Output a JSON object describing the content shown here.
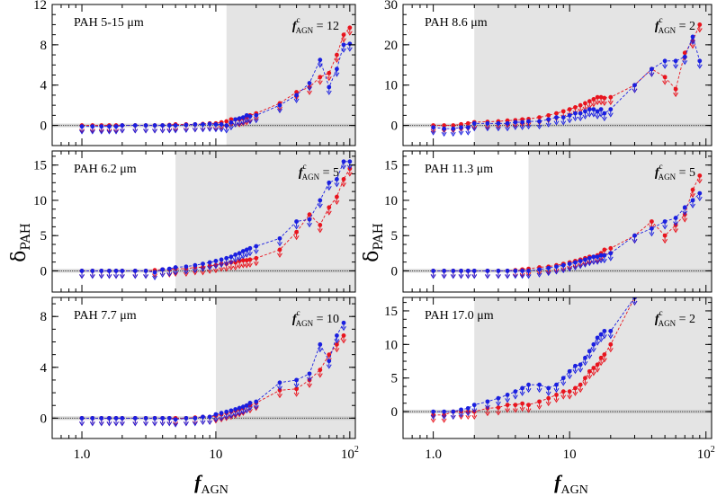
{
  "figure": {
    "xlabel_main": "f",
    "xlabel_sub": "AGN",
    "ylabel_main": "δ",
    "ylabel_sub": "PAH",
    "colors": {
      "red": "#e8141e",
      "blue": "#1a1fe0",
      "shade": "#e4e4e4"
    }
  },
  "chart_data": [
    {
      "type": "line",
      "panel": "PAH 5-15 μm",
      "threshold_text": "f",
      "threshold_sup": "c",
      "threshold_sub": "AGN",
      "threshold_value": "= 12",
      "threshold": 12,
      "xscale": "log",
      "xlim": [
        0.6,
        110
      ],
      "ylim": [
        -2,
        12
      ],
      "yticks": [
        0,
        4,
        8,
        12
      ],
      "series": [
        {
          "color": "red",
          "x": [
            1,
            1.2,
            1.4,
            1.6,
            1.8,
            2,
            2.5,
            3,
            3.5,
            4,
            4.5,
            5,
            6,
            7,
            8,
            9,
            10,
            11,
            12,
            13,
            14,
            15,
            16,
            17,
            18,
            20,
            30,
            40,
            50,
            60,
            70,
            80,
            90,
            100
          ],
          "y": [
            0,
            0,
            0,
            0,
            0,
            0,
            0,
            0,
            0,
            0,
            0.05,
            0.1,
            0.1,
            0.1,
            0.15,
            0.2,
            0.2,
            0.3,
            0.4,
            0.6,
            0.6,
            0.6,
            0.7,
            0.8,
            1,
            1.2,
            2.2,
            3.3,
            3.8,
            4.8,
            5.2,
            7,
            9,
            9.7
          ]
        },
        {
          "color": "blue",
          "x": [
            1,
            1.2,
            1.4,
            1.6,
            1.8,
            2,
            2.5,
            3,
            3.5,
            4,
            4.5,
            5,
            6,
            7,
            8,
            9,
            10,
            11,
            12,
            13,
            14,
            15,
            16,
            17,
            18,
            20,
            30,
            40,
            50,
            60,
            70,
            80,
            90,
            100
          ],
          "y": [
            -0.1,
            -0.1,
            -0.1,
            -0.1,
            -0.1,
            0,
            0,
            0,
            0,
            0,
            0,
            0,
            0.05,
            0.1,
            0.1,
            0.15,
            0.1,
            0.1,
            0,
            0.3,
            0.6,
            0.7,
            0.8,
            1,
            0.9,
            1,
            2.0,
            3.0,
            4.2,
            6.5,
            3.8,
            5.6,
            8.0,
            8.1
          ]
        }
      ],
      "x_tick_labels": [
        "1.0",
        "10",
        "10"
      ],
      "x_tick_sup": "2"
    },
    {
      "type": "line",
      "panel": "PAH 8.6 μm",
      "threshold_text": "f",
      "threshold_sup": "c",
      "threshold_sub": "AGN",
      "threshold_value": "= 2",
      "threshold": 2,
      "xscale": "log",
      "xlim": [
        0.6,
        110
      ],
      "ylim": [
        -5,
        30
      ],
      "yticks": [
        0,
        10,
        20,
        30
      ],
      "series": [
        {
          "color": "red",
          "x": [
            1,
            1.2,
            1.4,
            1.6,
            1.8,
            2,
            2.5,
            3,
            3.5,
            4,
            4.5,
            5,
            6,
            7,
            8,
            9,
            10,
            11,
            12,
            13,
            14,
            15,
            16,
            17,
            18,
            20,
            30,
            40,
            50,
            60,
            70,
            80,
            90
          ],
          "y": [
            0,
            0,
            0,
            0.3,
            0.5,
            0.8,
            0.9,
            1,
            1.2,
            1.3,
            1.5,
            1.6,
            2,
            2.5,
            3,
            3.5,
            4,
            4.5,
            5,
            5.5,
            6,
            6.5,
            7,
            7,
            6.8,
            7,
            10,
            14,
            12,
            9,
            18,
            21,
            25
          ]
        },
        {
          "color": "blue",
          "x": [
            1,
            1.2,
            1.4,
            1.6,
            1.8,
            2,
            2.5,
            3,
            3.5,
            4,
            4.5,
            5,
            6,
            7,
            8,
            9,
            10,
            11,
            12,
            13,
            14,
            15,
            16,
            17,
            18,
            20,
            30,
            40,
            50,
            60,
            70,
            80,
            90
          ],
          "y": [
            -0.5,
            -0.8,
            -0.8,
            -0.5,
            -0.5,
            0.5,
            0.5,
            0.5,
            0.5,
            0.8,
            0.8,
            1,
            1,
            1.5,
            2,
            2,
            2.5,
            3,
            3,
            3.5,
            4,
            4,
            3.5,
            4,
            3,
            4,
            10,
            14,
            16,
            16,
            17,
            22,
            16
          ]
        }
      ],
      "x_tick_labels": [
        "1.0",
        "10",
        "10"
      ],
      "x_tick_sup": "2"
    },
    {
      "type": "line",
      "panel": "PAH 6.2 μm",
      "threshold_text": "f",
      "threshold_sup": "c",
      "threshold_sub": "AGN",
      "threshold_value": "= 5",
      "threshold": 5,
      "xscale": "log",
      "xlim": [
        0.6,
        110
      ],
      "ylim": [
        -3,
        17
      ],
      "yticks": [
        0,
        5,
        10,
        15
      ],
      "series": [
        {
          "color": "red",
          "x": [
            1,
            1.2,
            1.4,
            1.6,
            1.8,
            2,
            2.5,
            3,
            3.5,
            4,
            4.5,
            5,
            6,
            7,
            8,
            9,
            10,
            11,
            12,
            13,
            14,
            15,
            16,
            17,
            18,
            20,
            30,
            40,
            50,
            60,
            70,
            80,
            90,
            100
          ],
          "y": [
            0,
            0,
            0,
            0,
            0,
            0,
            0,
            0,
            0.1,
            0.2,
            0.2,
            0.3,
            0.3,
            0.5,
            0.5,
            0.7,
            0.8,
            1,
            1,
            1.2,
            1.2,
            1.4,
            1.5,
            1.5,
            1.6,
            1.8,
            3,
            5.5,
            8,
            6.5,
            9,
            10.5,
            13,
            14.5
          ]
        },
        {
          "color": "blue",
          "x": [
            1,
            1.2,
            1.4,
            1.6,
            1.8,
            2,
            2.5,
            3,
            3.5,
            4,
            4.5,
            5,
            6,
            7,
            8,
            9,
            10,
            11,
            12,
            13,
            14,
            15,
            16,
            17,
            18,
            20,
            30,
            40,
            50,
            60,
            70,
            80,
            90,
            100
          ],
          "y": [
            0,
            0,
            0,
            0,
            0,
            0,
            0,
            0,
            -0.2,
            0.2,
            0.3,
            0.5,
            0.6,
            0.8,
            1,
            1.2,
            1.4,
            1.6,
            1.8,
            2,
            2.3,
            2.5,
            2.8,
            3,
            3.2,
            3.5,
            4.6,
            7,
            7.3,
            10,
            12.5,
            13,
            15.5,
            15.5
          ]
        }
      ],
      "x_tick_labels": [
        "1.0",
        "10",
        "10"
      ],
      "x_tick_sup": "2"
    },
    {
      "type": "line",
      "panel": "PAH 11.3 μm",
      "threshold_text": "f",
      "threshold_sup": "c",
      "threshold_sub": "AGN",
      "threshold_value": "= 5",
      "threshold": 5,
      "xscale": "log",
      "xlim": [
        0.6,
        110
      ],
      "ylim": [
        -3,
        17
      ],
      "yticks": [
        0,
        5,
        10,
        15
      ],
      "series": [
        {
          "color": "red",
          "x": [
            1,
            1.2,
            1.4,
            1.6,
            1.8,
            2,
            2.5,
            3,
            3.5,
            4,
            4.5,
            5,
            6,
            7,
            8,
            9,
            10,
            11,
            12,
            13,
            14,
            15,
            16,
            17,
            18,
            20,
            30,
            40,
            50,
            60,
            70,
            80,
            90
          ],
          "y": [
            0,
            0,
            0,
            0,
            0,
            0,
            0,
            0,
            0,
            0.1,
            0.2,
            0.3,
            0.5,
            0.6,
            0.8,
            1,
            1.2,
            1.4,
            1.6,
            1.8,
            2,
            2,
            2.2,
            2.5,
            3,
            3.2,
            5,
            7,
            5,
            6.5,
            8,
            11.5,
            13.5
          ]
        },
        {
          "color": "blue",
          "x": [
            1,
            1.2,
            1.4,
            1.6,
            1.8,
            2,
            2.5,
            3,
            3.5,
            4,
            4.5,
            5,
            6,
            7,
            8,
            9,
            10,
            11,
            12,
            13,
            14,
            15,
            16,
            17,
            18,
            20,
            30,
            40,
            50,
            60,
            70,
            80,
            90
          ],
          "y": [
            0,
            0,
            0,
            0,
            0,
            0,
            0,
            0,
            0,
            0,
            0,
            0,
            0.2,
            0.4,
            0.6,
            0.8,
            1,
            1.2,
            1.4,
            1.6,
            1.8,
            2,
            2,
            2.2,
            2.2,
            2.5,
            5,
            6,
            7,
            7.5,
            9,
            10,
            11
          ]
        }
      ],
      "x_tick_labels": [
        "1.0",
        "10",
        "10"
      ],
      "x_tick_sup": "2"
    },
    {
      "type": "line",
      "panel": "PAH 7.7 μm",
      "threshold_text": "f",
      "threshold_sup": "c",
      "threshold_sub": "AGN",
      "threshold_value": "= 10",
      "threshold": 10,
      "xscale": "log",
      "xlim": [
        0.6,
        110
      ],
      "ylim": [
        -1.6,
        9.5
      ],
      "yticks": [
        0,
        4,
        8
      ],
      "series": [
        {
          "color": "red",
          "x": [
            1,
            1.2,
            1.4,
            1.6,
            1.8,
            2,
            2.5,
            3,
            3.5,
            4,
            4.5,
            5,
            6,
            7,
            8,
            9,
            10,
            11,
            12,
            13,
            14,
            15,
            16,
            17,
            18,
            20,
            30,
            40,
            50,
            60,
            70,
            80,
            90
          ],
          "y": [
            0,
            0,
            0,
            0,
            0,
            0,
            0,
            0,
            0,
            0,
            0,
            0,
            0,
            0.05,
            0.1,
            0.1,
            0.2,
            0.3,
            0.4,
            0.5,
            0.6,
            0.7,
            0.8,
            1,
            1,
            1.2,
            2.2,
            2.3,
            3,
            3.8,
            5,
            5.8,
            6.5
          ]
        },
        {
          "color": "blue",
          "x": [
            1,
            1.2,
            1.4,
            1.6,
            1.8,
            2,
            2.5,
            3,
            3.5,
            4,
            4.5,
            5,
            6,
            7,
            8,
            9,
            10,
            11,
            12,
            13,
            14,
            15,
            16,
            17,
            18,
            20,
            30,
            40,
            50,
            60,
            70,
            80,
            90
          ],
          "y": [
            0,
            0,
            0,
            0,
            0,
            0,
            0,
            0,
            0,
            0,
            0,
            -0.1,
            0,
            0,
            0.1,
            0.1,
            0.3,
            0.4,
            0.5,
            0.6,
            0.7,
            0.8,
            0.9,
            1,
            1.2,
            1.3,
            2.8,
            3,
            3.5,
            5.8,
            4.5,
            6.5,
            7.5
          ]
        }
      ],
      "x_tick_labels": [
        "1.0",
        "10",
        "10"
      ],
      "x_tick_sup": "2"
    },
    {
      "type": "line",
      "panel": "PAH 17.0 μm",
      "threshold_text": "f",
      "threshold_sup": "c",
      "threshold_sub": "AGN",
      "threshold_value": "= 2",
      "threshold": 2,
      "xscale": "log",
      "xlim": [
        0.6,
        110
      ],
      "ylim": [
        -4,
        17
      ],
      "yticks": [
        0,
        5,
        10,
        15
      ],
      "series": [
        {
          "color": "red",
          "x": [
            1,
            1.2,
            1.4,
            1.6,
            1.8,
            2,
            2.5,
            3,
            3.5,
            4,
            4.5,
            5,
            6,
            7,
            8,
            9,
            10,
            11,
            12,
            13,
            14,
            15,
            16,
            17,
            18,
            20,
            30
          ],
          "y": [
            -0.5,
            -0.5,
            0,
            0,
            0,
            0,
            0.5,
            0.6,
            1,
            1,
            1.2,
            1,
            1.5,
            2,
            2.5,
            3,
            3,
            3.5,
            4,
            5,
            6,
            6.5,
            7,
            8,
            8.5,
            10,
            17
          ]
        },
        {
          "color": "blue",
          "x": [
            1,
            1.2,
            1.4,
            1.6,
            1.8,
            2,
            2.5,
            3,
            3.5,
            4,
            4.5,
            5,
            6,
            7,
            8,
            9,
            10,
            11,
            12,
            13,
            14,
            15,
            16,
            17,
            18,
            20,
            30
          ],
          "y": [
            0,
            0,
            0,
            0.3,
            0.5,
            1,
            1.5,
            2,
            2.5,
            3,
            3.5,
            4,
            4,
            3.5,
            4,
            5,
            6,
            6.8,
            7,
            8,
            9,
            10,
            11,
            11.5,
            12,
            12,
            17
          ]
        }
      ],
      "x_tick_labels": [
        "1.0",
        "10",
        "10"
      ],
      "x_tick_sup": "2"
    }
  ]
}
